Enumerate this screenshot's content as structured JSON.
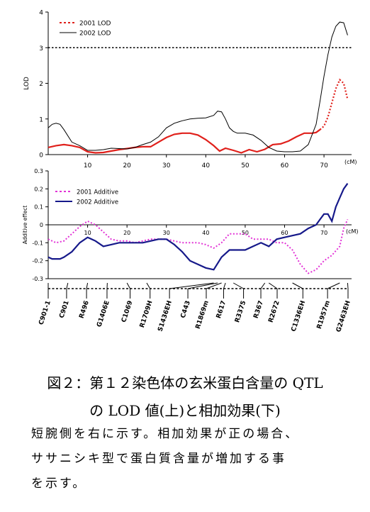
{
  "chart_data": [
    {
      "type": "line",
      "ylabel": "LOD",
      "xunit": "(cM)",
      "xlim": [
        0,
        77
      ],
      "ylim": [
        0,
        4
      ],
      "xticks": [
        "10",
        "20",
        "30",
        "40",
        "50",
        "60",
        "70"
      ],
      "yticks": [
        "0",
        "1",
        "2",
        "3",
        "4"
      ],
      "threshold": 3,
      "legend": [
        "2001 LOD",
        "2002 LOD"
      ],
      "legend_position": "top-left",
      "series": [
        {
          "name": "2001 LOD",
          "color": "#e0201b",
          "style": "dashed-right",
          "x": [
            0,
            2,
            4,
            6,
            8,
            10,
            12,
            14,
            16,
            18,
            20,
            22,
            24,
            26,
            28,
            30,
            32,
            34,
            36,
            38,
            40,
            42,
            43.5,
            45,
            47,
            49,
            51,
            53,
            55,
            57,
            59,
            61,
            63,
            65,
            67,
            68,
            69,
            70,
            71,
            72,
            73,
            74,
            75,
            76
          ],
          "y": [
            0.2,
            0.25,
            0.28,
            0.25,
            0.2,
            0.08,
            0.05,
            0.06,
            0.1,
            0.14,
            0.17,
            0.2,
            0.22,
            0.22,
            0.35,
            0.48,
            0.57,
            0.6,
            0.6,
            0.55,
            0.42,
            0.25,
            0.1,
            0.18,
            0.12,
            0.05,
            0.14,
            0.08,
            0.15,
            0.28,
            0.3,
            0.38,
            0.5,
            0.6,
            0.6,
            0.62,
            0.7,
            0.8,
            1.05,
            1.45,
            1.85,
            2.1,
            2.0,
            1.55
          ]
        },
        {
          "name": "2002 LOD",
          "color": "#000000",
          "style": "solid",
          "x": [
            0,
            1,
            2,
            3,
            4,
            6,
            8,
            10,
            12,
            14,
            16,
            18,
            20,
            22,
            24,
            26,
            28,
            30,
            32,
            34,
            36,
            38,
            40,
            42,
            43,
            44,
            45,
            46,
            47,
            48,
            50,
            52,
            54,
            56,
            58,
            60,
            62,
            64,
            66,
            68,
            69,
            70,
            71,
            72,
            73,
            74,
            75,
            76
          ],
          "y": [
            0.75,
            0.85,
            0.88,
            0.85,
            0.7,
            0.35,
            0.25,
            0.12,
            0.12,
            0.14,
            0.18,
            0.17,
            0.16,
            0.2,
            0.28,
            0.35,
            0.5,
            0.75,
            0.88,
            0.95,
            1.0,
            1.02,
            1.03,
            1.1,
            1.22,
            1.2,
            1.0,
            0.75,
            0.65,
            0.6,
            0.6,
            0.55,
            0.4,
            0.2,
            0.1,
            0.08,
            0.08,
            0.1,
            0.28,
            0.85,
            1.5,
            2.2,
            2.8,
            3.3,
            3.6,
            3.72,
            3.7,
            3.35
          ]
        }
      ]
    },
    {
      "type": "line",
      "ylabel": "Additive effect",
      "xunit": "(cM)",
      "xlim": [
        0,
        77
      ],
      "ylim": [
        -0.3,
        0.3
      ],
      "xticks": [
        "10",
        "20",
        "30",
        "40",
        "50",
        "60",
        "70"
      ],
      "yticks": [
        "0.3",
        "0.2",
        "0.1",
        "0",
        "-0.1",
        "-0.2",
        "-0.3"
      ],
      "legend": [
        "2001 Additive",
        "2002 Additive"
      ],
      "legend_position": "top-left",
      "series": [
        {
          "name": "2001 Additive",
          "color": "#e233d6",
          "style": "dashed",
          "x": [
            0,
            2,
            4,
            6,
            8,
            10,
            12,
            14,
            16,
            18,
            20,
            22,
            24,
            26,
            28,
            30,
            32,
            34,
            36,
            38,
            40,
            42,
            44,
            46,
            48,
            50,
            52,
            54,
            56,
            58,
            60,
            62,
            64,
            66,
            68,
            70,
            72,
            74,
            75,
            76
          ],
          "y": [
            -0.08,
            -0.1,
            -0.09,
            -0.05,
            -0.01,
            0.02,
            0.0,
            -0.04,
            -0.08,
            -0.09,
            -0.09,
            -0.1,
            -0.09,
            -0.08,
            -0.08,
            -0.08,
            -0.09,
            -0.1,
            -0.1,
            -0.1,
            -0.11,
            -0.13,
            -0.1,
            -0.05,
            -0.05,
            -0.05,
            -0.08,
            -0.08,
            -0.08,
            -0.1,
            -0.1,
            -0.14,
            -0.22,
            -0.27,
            -0.25,
            -0.2,
            -0.17,
            -0.12,
            -0.02,
            0.03
          ]
        },
        {
          "name": "2002 Additive",
          "color": "#16198a",
          "style": "solid",
          "x": [
            0,
            1,
            2,
            3,
            4,
            6,
            8,
            10,
            12,
            14,
            16,
            18,
            20,
            22,
            24,
            26,
            28,
            30,
            32,
            34,
            36,
            38,
            40,
            42,
            44,
            46,
            48,
            50,
            52,
            54,
            56,
            58,
            60,
            62,
            64,
            66,
            68,
            69,
            70,
            71,
            72,
            73,
            74,
            75,
            76
          ],
          "y": [
            -0.18,
            -0.19,
            -0.19,
            -0.19,
            -0.18,
            -0.15,
            -0.1,
            -0.07,
            -0.09,
            -0.12,
            -0.11,
            -0.1,
            -0.1,
            -0.1,
            -0.1,
            -0.09,
            -0.08,
            -0.08,
            -0.11,
            -0.15,
            -0.2,
            -0.22,
            -0.24,
            -0.25,
            -0.18,
            -0.14,
            -0.14,
            -0.14,
            -0.12,
            -0.1,
            -0.12,
            -0.08,
            -0.07,
            -0.06,
            -0.05,
            -0.02,
            0.0,
            0.03,
            0.06,
            0.06,
            0.02,
            0.1,
            0.15,
            0.2,
            0.23
          ]
        }
      ]
    }
  ],
  "markers": [
    {
      "name": "C901-1",
      "pos": 0
    },
    {
      "name": "C901",
      "pos": 3.5
    },
    {
      "name": "R496",
      "pos": 7.3
    },
    {
      "name": "G1406E",
      "pos": 11.2
    },
    {
      "name": "C1069",
      "pos": 15.6
    },
    {
      "name": "R1709H",
      "pos": 19.4
    },
    {
      "name": "S1436EH",
      "pos": 23.1
    },
    {
      "name": "C443",
      "pos": 26.6
    },
    {
      "name": "R1869m",
      "pos": 30.1
    },
    {
      "name": "R617",
      "pos": 33.4
    },
    {
      "name": "R3375",
      "pos": 37.2
    },
    {
      "name": "R367",
      "pos": 40.5
    },
    {
      "name": "R2672",
      "pos": 43.6
    },
    {
      "name": "C1336EH",
      "pos": 48.5
    },
    {
      "name": "R1957m",
      "pos": 53.2
    },
    {
      "name": "G2463EH",
      "pos": 57.1
    }
  ],
  "marker_links": [
    [
      0,
      0
    ],
    [
      3.5,
      5
    ],
    [
      7.3,
      10
    ],
    [
      11.2,
      15
    ],
    [
      15.6,
      20
    ],
    [
      19.4,
      25
    ],
    [
      23.1,
      42
    ],
    [
      26.6,
      43
    ],
    [
      30.1,
      44
    ],
    [
      33.4,
      45
    ],
    [
      37.2,
      47
    ],
    [
      40.5,
      55
    ],
    [
      43.6,
      56
    ],
    [
      48.5,
      62
    ],
    [
      53.2,
      74
    ],
    [
      57.1,
      76
    ]
  ],
  "caption": {
    "line1": "図２：第１２染色体の玄米蛋白含量の QTL",
    "line2": "の LOD 値(上)と相加効果(下)"
  },
  "body": {
    "line1": "短腕側を右に示す。相加効果が正の場合、",
    "line2": "ササニシキ型で蛋白質含量が増加する事",
    "line3": "を示す。"
  }
}
